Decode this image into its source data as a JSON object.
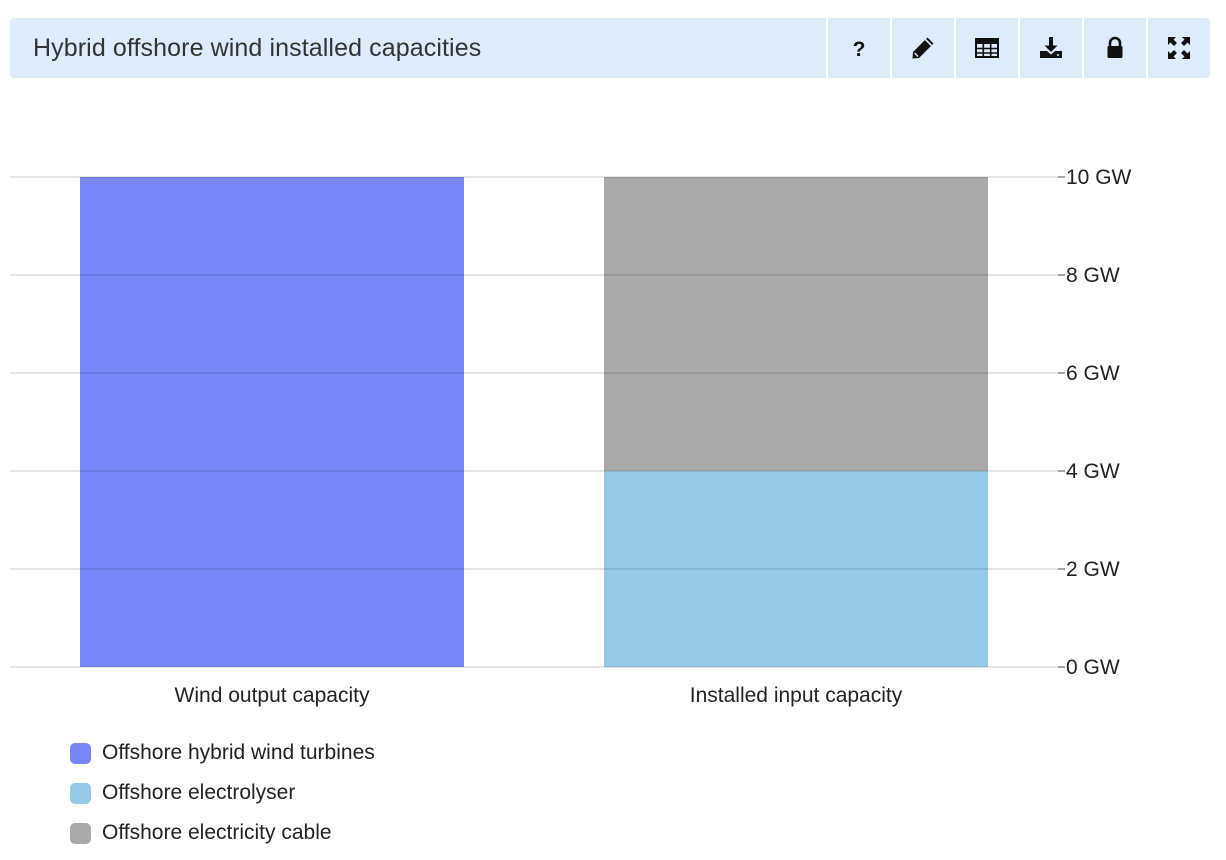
{
  "header": {
    "title": "Hybrid offshore wind installed capacities",
    "tools": [
      {
        "name": "help-icon"
      },
      {
        "name": "edit-icon"
      },
      {
        "name": "table-icon"
      },
      {
        "name": "download-icon"
      },
      {
        "name": "lock-icon"
      },
      {
        "name": "fullscreen-icon"
      }
    ]
  },
  "chart_data": {
    "type": "bar",
    "stacked": true,
    "categories": [
      "Wind output capacity",
      "Installed input capacity"
    ],
    "series": [
      {
        "name": "Offshore hybrid wind turbines",
        "color": "#7986f7",
        "values": [
          10,
          0
        ]
      },
      {
        "name": "Offshore electrolyser",
        "color": "#96cae8",
        "values": [
          0,
          4
        ]
      },
      {
        "name": "Offshore electricity cable",
        "color": "#a9a9a9",
        "values": [
          0,
          6
        ]
      }
    ],
    "y_ticks": [
      "0 GW",
      "2 GW",
      "4 GW",
      "6 GW",
      "8 GW",
      "10 GW"
    ],
    "ylim": [
      0,
      10
    ],
    "y_unit": "GW",
    "y_axis_position": "right",
    "grid": true,
    "legend_position": "bottom-left"
  }
}
